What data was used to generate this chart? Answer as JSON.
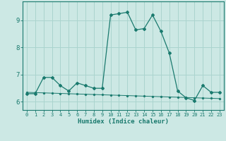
{
  "title": "",
  "xlabel": "Humidex (Indice chaleur)",
  "ylabel": "",
  "background_color": "#cce8e4",
  "grid_color": "#aad4ce",
  "line_color": "#1a7a6e",
  "x_values": [
    0,
    1,
    2,
    3,
    4,
    5,
    6,
    7,
    8,
    9,
    10,
    11,
    12,
    13,
    14,
    15,
    16,
    17,
    18,
    19,
    20,
    21,
    22,
    23
  ],
  "line1_y": [
    6.3,
    6.3,
    6.9,
    6.9,
    6.6,
    6.4,
    6.7,
    6.6,
    6.5,
    6.5,
    9.2,
    9.25,
    9.3,
    8.65,
    8.7,
    9.2,
    8.6,
    7.8,
    6.4,
    6.15,
    6.05,
    6.6,
    6.35,
    6.35
  ],
  "line2_y": [
    6.35,
    6.34,
    6.33,
    6.32,
    6.31,
    6.3,
    6.29,
    6.28,
    6.27,
    6.26,
    6.25,
    6.24,
    6.23,
    6.22,
    6.21,
    6.2,
    6.19,
    6.18,
    6.17,
    6.16,
    6.15,
    6.14,
    6.13,
    6.12
  ],
  "ylim": [
    5.7,
    9.7
  ],
  "xlim": [
    -0.5,
    23.5
  ],
  "yticks": [
    6,
    7,
    8,
    9
  ],
  "xticks": [
    0,
    1,
    2,
    3,
    4,
    5,
    6,
    7,
    8,
    9,
    10,
    11,
    12,
    13,
    14,
    15,
    16,
    17,
    18,
    19,
    20,
    21,
    22,
    23
  ],
  "xtick_labels": [
    "0",
    "1",
    "2",
    "3",
    "4",
    "5",
    "6",
    "7",
    "8",
    "9",
    "10",
    "11",
    "12",
    "13",
    "14",
    "15",
    "16",
    "17",
    "18",
    "19",
    "20",
    "21",
    "22",
    "23"
  ]
}
